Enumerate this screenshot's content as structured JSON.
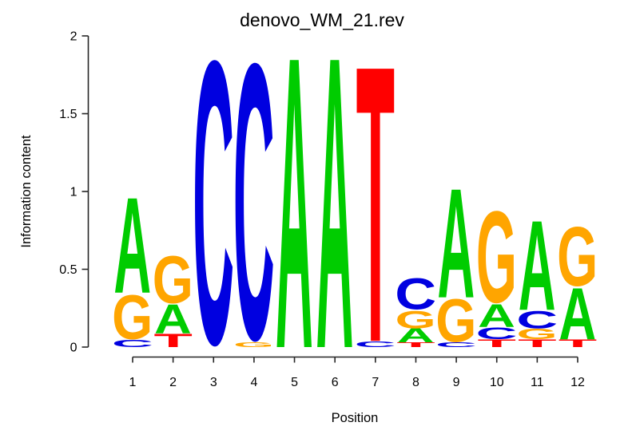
{
  "figure": {
    "background": "#ffffff",
    "axis_color": "#262626",
    "text_color": "#000000"
  },
  "chart_data": {
    "type": "sequence-logo",
    "title": "denovo_WM_21.rev",
    "xlabel": "Position",
    "ylabel": "Information content",
    "ylim": [
      0,
      2
    ],
    "ytick_labels": [
      "0",
      "0.5",
      "1",
      "1.5",
      "2"
    ],
    "positions": [
      "1",
      "2",
      "3",
      "4",
      "5",
      "6",
      "7",
      "8",
      "9",
      "10",
      "11",
      "12"
    ],
    "letter_colors": {
      "A": "#00CC00",
      "C": "#0000E0",
      "G": "#FFA500",
      "T": "#FF0000"
    },
    "stacks": [
      {
        "position": "1",
        "letters": [
          {
            "letter": "C",
            "height": 0.05
          },
          {
            "letter": "G",
            "height": 0.3
          },
          {
            "letter": "A",
            "height": 0.63
          }
        ]
      },
      {
        "position": "2",
        "letters": [
          {
            "letter": "T",
            "height": 0.09
          },
          {
            "letter": "A",
            "height": 0.19
          },
          {
            "letter": "G",
            "height": 0.32
          }
        ]
      },
      {
        "position": "3",
        "letters": [
          {
            "letter": "C",
            "height": 1.92
          }
        ]
      },
      {
        "position": "4",
        "letters": [
          {
            "letter": "G",
            "height": 0.03
          },
          {
            "letter": "C",
            "height": 1.87
          }
        ]
      },
      {
        "position": "5",
        "letters": [
          {
            "letter": "A",
            "height": 1.92
          }
        ]
      },
      {
        "position": "6",
        "letters": [
          {
            "letter": "A",
            "height": 1.92
          }
        ]
      },
      {
        "position": "7",
        "letters": [
          {
            "letter": "C",
            "height": 0.04
          },
          {
            "letter": "T",
            "height": 1.82
          }
        ]
      },
      {
        "position": "8",
        "letters": [
          {
            "letter": "T",
            "height": 0.03
          },
          {
            "letter": "A",
            "height": 0.09
          },
          {
            "letter": "G",
            "height": 0.12
          },
          {
            "letter": "C",
            "height": 0.21
          }
        ]
      },
      {
        "position": "9",
        "letters": [
          {
            "letter": "C",
            "height": 0.03
          },
          {
            "letter": "G",
            "height": 0.29
          },
          {
            "letter": "A",
            "height": 0.72
          }
        ]
      },
      {
        "position": "10",
        "letters": [
          {
            "letter": "T",
            "height": 0.05
          },
          {
            "letter": "C",
            "height": 0.08
          },
          {
            "letter": "A",
            "height": 0.15
          },
          {
            "letter": "G",
            "height": 0.62
          }
        ]
      },
      {
        "position": "11",
        "letters": [
          {
            "letter": "T",
            "height": 0.05
          },
          {
            "letter": "G",
            "height": 0.07
          },
          {
            "letter": "C",
            "height": 0.12
          },
          {
            "letter": "A",
            "height": 0.59
          }
        ]
      },
      {
        "position": "12",
        "letters": [
          {
            "letter": "T",
            "height": 0.05
          },
          {
            "letter": "A",
            "height": 0.34
          },
          {
            "letter": "G",
            "height": 0.4
          }
        ]
      }
    ]
  }
}
